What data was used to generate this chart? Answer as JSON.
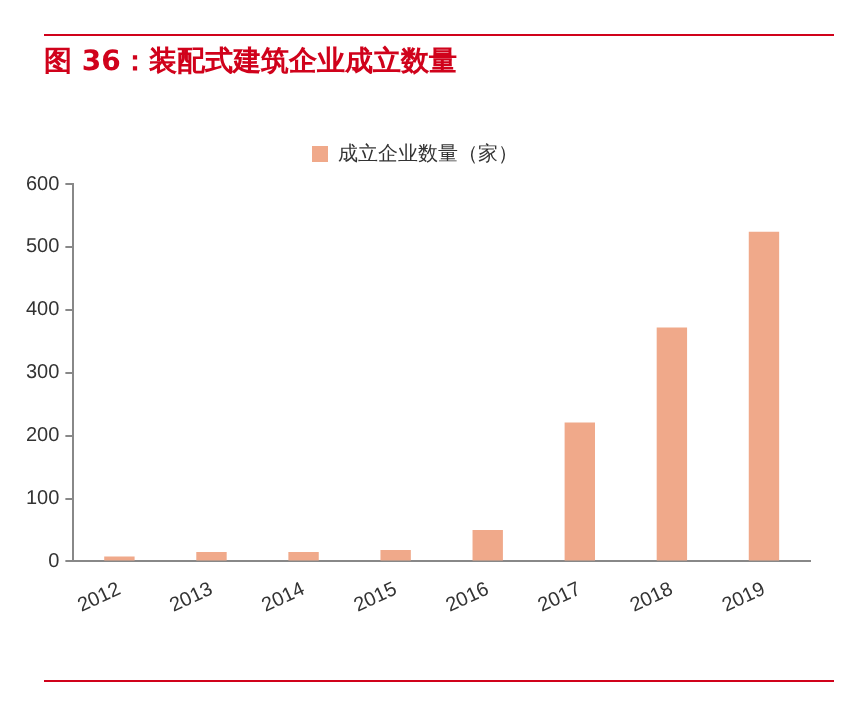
{
  "chart_data": {
    "type": "bar",
    "title": "图 36：装配式建筑企业成立数量",
    "categories": [
      "2012",
      "2013",
      "2014",
      "2015",
      "2016",
      "2017",
      "2018",
      "2019"
    ],
    "series": [
      {
        "name": "成立企业数量（家）",
        "color": "#f0a98a",
        "values": [
          8,
          15,
          15,
          18,
          50,
          221,
          372,
          524
        ]
      }
    ],
    "ylim": [
      0,
      600
    ],
    "yticks": [
      0,
      100,
      200,
      300,
      400,
      500,
      600
    ],
    "grid": false,
    "legend": "top"
  }
}
